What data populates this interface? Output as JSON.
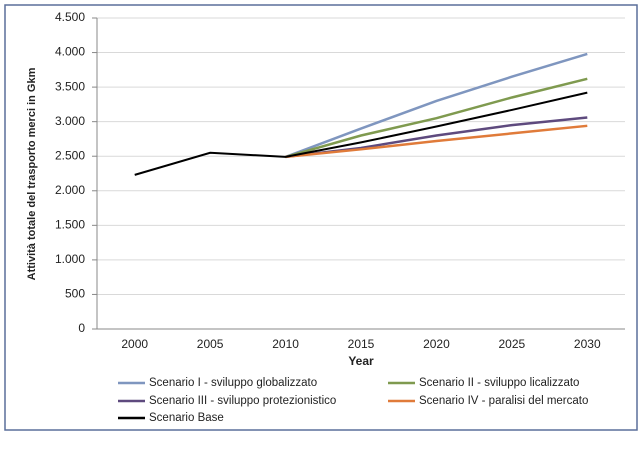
{
  "chart_data": {
    "type": "line",
    "y_label": "Attività totale del trasporto merci  in Gkm",
    "x_label": "Year",
    "x": [
      2000,
      2005,
      2010,
      2015,
      2020,
      2025,
      2030
    ],
    "ylim": [
      0,
      4500
    ],
    "yticks": [
      0,
      500,
      {
        "value": 1000,
        "label": "1.000"
      },
      {
        "value": 1500,
        "label": "1.500"
      },
      {
        "value": 2000,
        "label": "2.000"
      },
      {
        "value": 2500,
        "label": "2.500"
      },
      {
        "value": 3000,
        "label": "3.000"
      },
      {
        "value": 3500,
        "label": "3.500"
      },
      {
        "value": 4000,
        "label": "4.000"
      },
      {
        "value": 4500,
        "label": "4.500"
      }
    ],
    "grid": true,
    "series": [
      {
        "name": "Scenario I - sviluppo globalizzato",
        "color": "#7f96bf",
        "values": [
          null,
          null,
          2490,
          2900,
          3300,
          3650,
          3980
        ]
      },
      {
        "name": "Scenario II - sviluppo licalizzato",
        "color": "#7f9a4f",
        "values": [
          null,
          null,
          2490,
          2800,
          3050,
          3350,
          3620
        ]
      },
      {
        "name": "Scenario III - sviluppo protezionistico",
        "color": "#5e4a7e",
        "values": [
          null,
          null,
          2490,
          2620,
          2800,
          2950,
          3060
        ]
      },
      {
        "name": "Scenario IV - paralisi del mercato",
        "color": "#e07b3a",
        "values": [
          null,
          null,
          2490,
          2600,
          2720,
          2830,
          2940
        ]
      },
      {
        "name": "Scenario Base",
        "color": "#000000",
        "values": [
          2230,
          2550,
          2490,
          2700,
          2930,
          3170,
          3420
        ]
      }
    ]
  }
}
